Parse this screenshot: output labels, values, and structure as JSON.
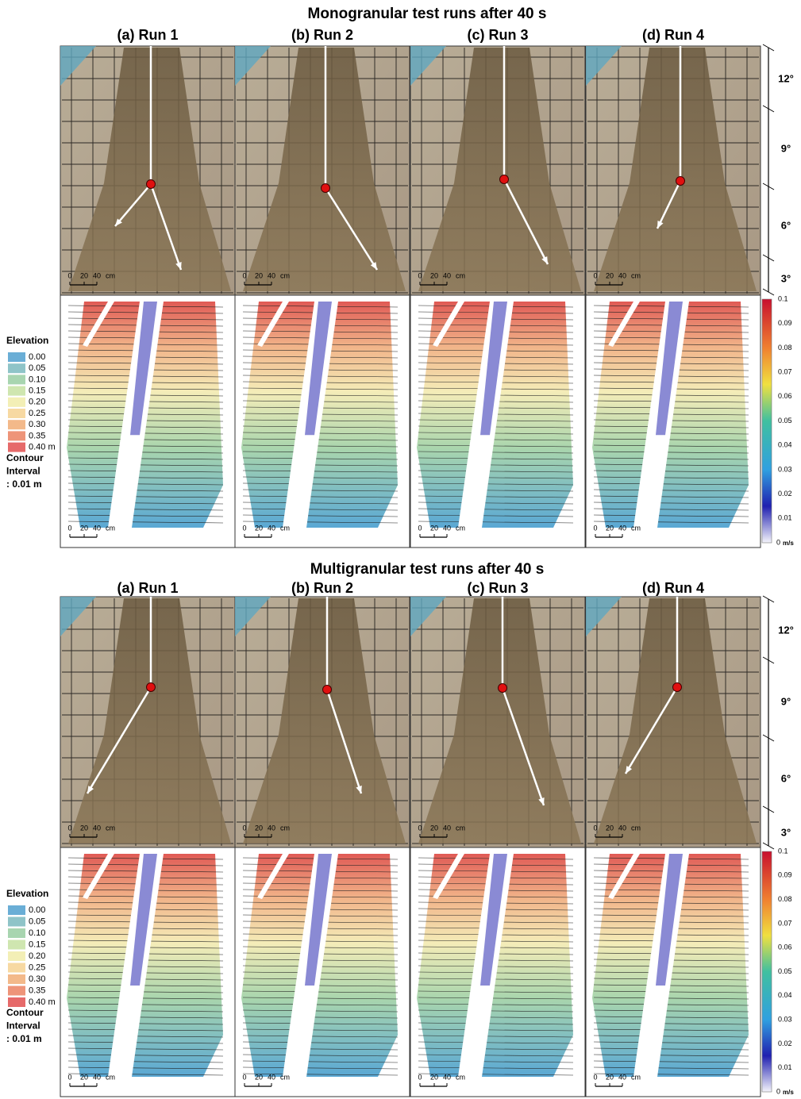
{
  "sections": [
    {
      "title": "Monogranular test runs after 40 s",
      "panels": [
        "(a) Run 1",
        "(b) Run 2",
        "(c) Run 3",
        "(d) Run 4"
      ],
      "scale_bar": [
        "0",
        "20",
        "40",
        "cm"
      ],
      "slopes": [
        "12°",
        "9°",
        "6°",
        "3°"
      ],
      "elevation": {
        "title": "Elevation",
        "items": [
          "0.00",
          "0.05",
          "0.10",
          "0.15",
          "0.20",
          "0.25",
          "0.30",
          "0.35",
          "0.40 m"
        ],
        "contour": [
          "Contour",
          "Interval",
          ": 0.01 m"
        ]
      },
      "colorbar": {
        "ticks": [
          "0.1",
          "0.09",
          "0.08",
          "0.07",
          "0.06",
          "0.05",
          "0.04",
          "0.03",
          "0.02",
          "0.01"
        ],
        "zero": "0",
        "unit": "m/s"
      }
    },
    {
      "title": "Multigranular test runs after 40 s",
      "panels": [
        "(a) Run 1",
        "(b) Run 2",
        "(c) Run 3",
        "(d) Run 4"
      ],
      "scale_bar": [
        "0",
        "20",
        "40",
        "cm"
      ],
      "slopes": [
        "12°",
        "9°",
        "6°",
        "3°"
      ],
      "elevation": {
        "title": "Elevation",
        "items": [
          "0.00",
          "0.05",
          "0.10",
          "0.15",
          "0.20",
          "0.25",
          "0.30",
          "0.35",
          "0.40 m"
        ],
        "contour": [
          "Contour",
          "Interval",
          ": 0.01 m"
        ]
      },
      "colorbar": {
        "ticks": [
          "0.1",
          "0.09",
          "0.08",
          "0.07",
          "0.06",
          "0.05",
          "0.04",
          "0.03",
          "0.02",
          "0.01"
        ],
        "zero": "0",
        "unit": "m/s"
      }
    }
  ]
}
